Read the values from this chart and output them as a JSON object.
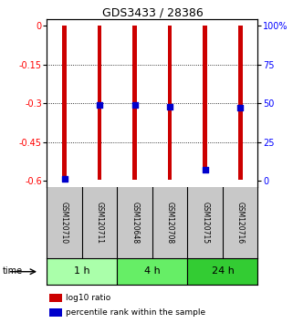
{
  "title": "GDS3433 / 28386",
  "samples": [
    "GSM120710",
    "GSM120711",
    "GSM120648",
    "GSM120708",
    "GSM120715",
    "GSM120716"
  ],
  "log10_ratio_bottom": [
    -0.595,
    -0.595,
    -0.595,
    -0.595,
    -0.57,
    -0.595
  ],
  "log10_ratio_top": [
    0.0,
    0.0,
    0.0,
    0.0,
    0.0,
    0.0
  ],
  "percentile_rank_val": [
    -0.592,
    -0.305,
    -0.305,
    -0.313,
    -0.558,
    -0.318
  ],
  "ylim": [
    -0.625,
    0.025
  ],
  "yticks_left": [
    0,
    -0.15,
    -0.3,
    -0.45,
    -0.6
  ],
  "yticks_right_vals": [
    0.0,
    -0.15,
    -0.3,
    -0.45,
    -0.6
  ],
  "yticks_right_labels": [
    "100%",
    "75",
    "50",
    "25",
    "0"
  ],
  "grid_lines": [
    -0.15,
    -0.3,
    -0.45
  ],
  "groups": [
    {
      "label": "1 h",
      "indices": [
        0,
        1
      ],
      "color": "#aaffaa"
    },
    {
      "label": "4 h",
      "indices": [
        2,
        3
      ],
      "color": "#66ee66"
    },
    {
      "label": "24 h",
      "indices": [
        4,
        5
      ],
      "color": "#33cc33"
    }
  ],
  "sample_box_color": "#c8c8c8",
  "bar_color_red": "#cc0000",
  "bar_color_blue": "#0000cc",
  "bar_width": 0.12,
  "blue_square_size": 18,
  "background_color": "#ffffff",
  "title_fontsize": 9,
  "tick_fontsize": 7,
  "sample_fontsize": 5.5,
  "group_fontsize": 8,
  "legend_fontsize": 6.5
}
